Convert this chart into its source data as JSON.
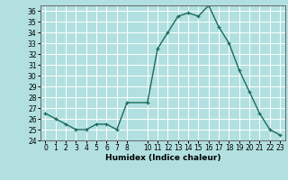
{
  "x": [
    0,
    1,
    2,
    3,
    4,
    5,
    6,
    7,
    8,
    10,
    11,
    12,
    13,
    14,
    15,
    16,
    17,
    18,
    19,
    20,
    21,
    22,
    23
  ],
  "y": [
    26.5,
    26.0,
    25.5,
    25.0,
    25.0,
    25.5,
    25.5,
    25.0,
    27.5,
    27.5,
    32.5,
    34.0,
    35.5,
    35.8,
    35.5,
    36.5,
    34.5,
    33.0,
    30.5,
    28.5,
    26.5,
    25.0,
    24.5
  ],
  "line_color": "#1a6b5a",
  "bg_color": "#b2e0e0",
  "grid_color": "#c8e8e8",
  "xlabel": "Humidex (Indice chaleur)",
  "xlim": [
    -0.5,
    23.5
  ],
  "ylim": [
    24,
    36.5
  ],
  "yticks": [
    24,
    25,
    26,
    27,
    28,
    29,
    30,
    31,
    32,
    33,
    34,
    35,
    36
  ],
  "xticks": [
    0,
    1,
    2,
    3,
    4,
    5,
    6,
    7,
    8,
    10,
    11,
    12,
    13,
    14,
    15,
    16,
    17,
    18,
    19,
    20,
    21,
    22,
    23
  ],
  "marker": "+",
  "markersize": 3.5,
  "linewidth": 1.0,
  "tick_fontsize": 5.5,
  "xlabel_fontsize": 6.5
}
